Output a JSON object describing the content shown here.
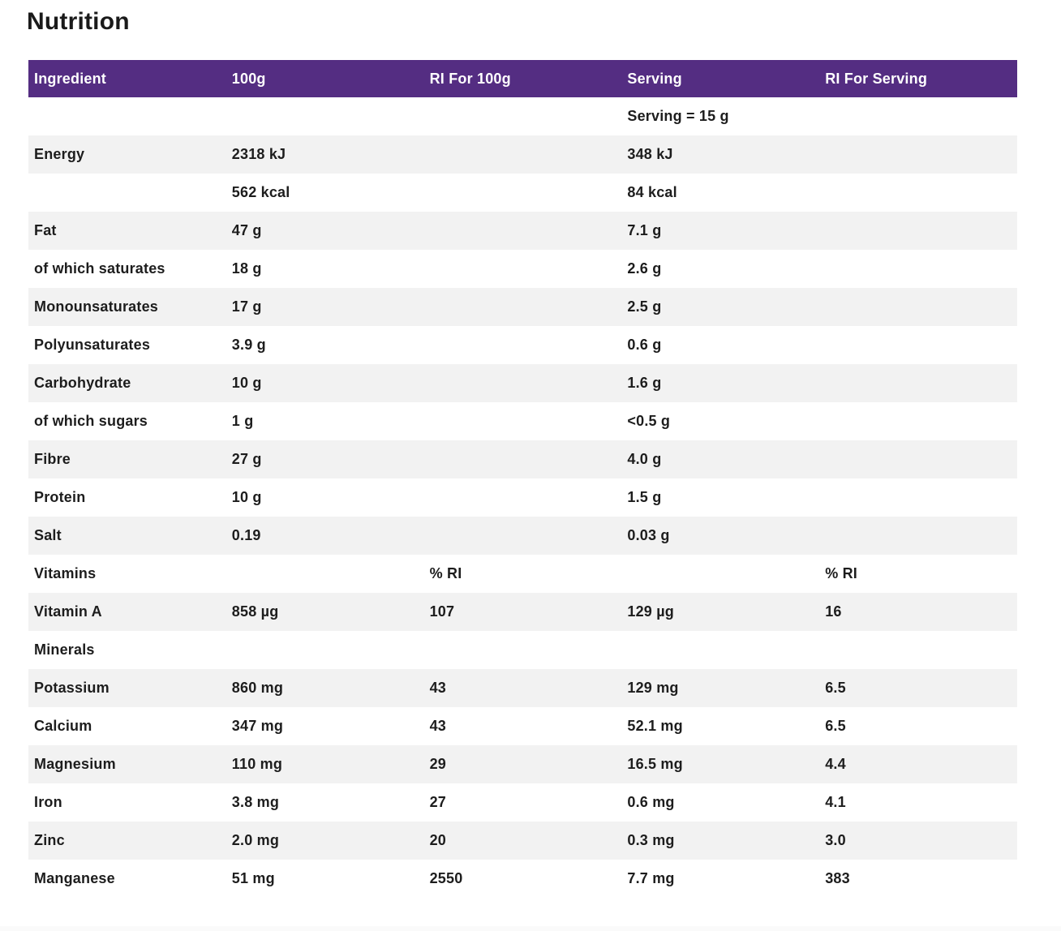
{
  "page": {
    "title": "Nutrition"
  },
  "colors": {
    "header_bg": "#542d82",
    "header_text": "#ffffff",
    "row_alt_bg": "#f2f2f2",
    "text": "#1d1d1d",
    "footer_band": "#fafafa"
  },
  "table": {
    "columns": [
      "Ingredient",
      "100g",
      "RI For 100g",
      "Serving",
      "RI For Serving"
    ],
    "rows": [
      {
        "cells": [
          "",
          "",
          "",
          "Serving = 15 g",
          ""
        ]
      },
      {
        "cells": [
          "Energy",
          "2318 kJ",
          "",
          "348 kJ",
          ""
        ]
      },
      {
        "cells": [
          "",
          "562 kcal",
          "",
          "84 kcal",
          ""
        ]
      },
      {
        "cells": [
          "Fat",
          "47 g",
          "",
          "7.1 g",
          ""
        ]
      },
      {
        "cells": [
          "of which saturates",
          "18 g",
          "",
          "2.6 g",
          ""
        ]
      },
      {
        "cells": [
          "Monounsaturates",
          "17 g",
          "",
          "2.5 g",
          ""
        ]
      },
      {
        "cells": [
          "Polyunsaturates",
          "3.9 g",
          "",
          "0.6 g",
          ""
        ]
      },
      {
        "cells": [
          "Carbohydrate",
          "10 g",
          "",
          "1.6 g",
          ""
        ]
      },
      {
        "cells": [
          "of which sugars",
          "1 g",
          "",
          "<0.5 g",
          ""
        ]
      },
      {
        "cells": [
          "Fibre",
          "27 g",
          "",
          "4.0 g",
          ""
        ]
      },
      {
        "cells": [
          "Protein",
          "10 g",
          "",
          "1.5 g",
          ""
        ]
      },
      {
        "cells": [
          "Salt",
          "0.19",
          "",
          "0.03 g",
          ""
        ]
      },
      {
        "cells": [
          "Vitamins",
          "",
          "% RI",
          "",
          "% RI"
        ]
      },
      {
        "cells": [
          "Vitamin A",
          "858 µg",
          "107",
          "129 µg",
          "16"
        ]
      },
      {
        "cells": [
          "Minerals",
          "",
          "",
          "",
          ""
        ]
      },
      {
        "cells": [
          "Potassium",
          "860 mg",
          "43",
          "129 mg",
          "6.5"
        ]
      },
      {
        "cells": [
          "Calcium",
          "347 mg",
          "43",
          "52.1 mg",
          "6.5"
        ]
      },
      {
        "cells": [
          "Magnesium",
          "110 mg",
          "29",
          "16.5 mg",
          "4.4"
        ]
      },
      {
        "cells": [
          "Iron",
          "3.8 mg",
          "27",
          "0.6 mg",
          "4.1"
        ]
      },
      {
        "cells": [
          "Zinc",
          "2.0 mg",
          "20",
          "0.3 mg",
          "3.0"
        ]
      },
      {
        "cells": [
          "Manganese",
          "51 mg",
          "2550",
          "7.7 mg",
          "383"
        ]
      }
    ]
  }
}
